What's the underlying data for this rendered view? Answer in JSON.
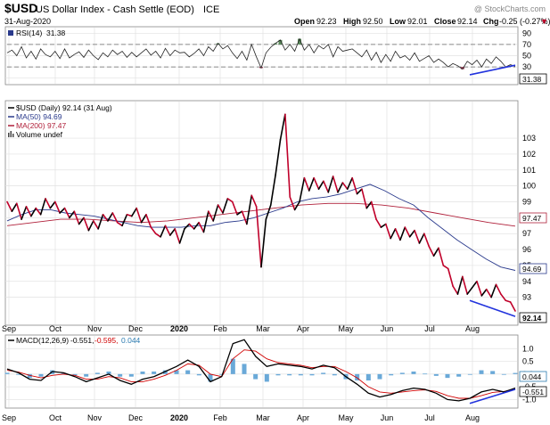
{
  "header": {
    "symbol": "$USD",
    "name": "US Dollar Index - Cash Settle (EOD)",
    "exchange": "ICE",
    "date": "31-Aug-2020",
    "credit": "@ StockCharts.com",
    "quote": {
      "open_label": "Open",
      "open": "92.23",
      "high_label": "High",
      "high": "92.50",
      "low_label": "Low",
      "low": "92.01",
      "close_label": "Close",
      "close": "92.14",
      "chg_label": "Chg",
      "chg": "-0.25 (-0.27%)",
      "chg_arrow": "▼"
    }
  },
  "x_labels": [
    "Sep",
    "Oct",
    "Nov",
    "Dec",
    "2020",
    "Feb",
    "Mar",
    "Apr",
    "May",
    "Jun",
    "Jul",
    "Aug"
  ],
  "colors": {
    "price": "#000000",
    "price_down": "#c0002a",
    "ma50": "#2a3a8c",
    "ma200": "#b0203a",
    "trend": "#2233dd",
    "macd": "#000000",
    "signal": "#d00000",
    "hist": "#6aa9d8"
  },
  "chart_data": [
    {
      "type": "line",
      "title": "RSI(14) 31.38",
      "label_prefix": "RSI(14)",
      "label_value": "31.38",
      "ylim": [
        0,
        100
      ],
      "yticks": [
        "90",
        "70",
        "50",
        "30",
        "10"
      ],
      "levels": [
        70,
        30
      ],
      "last_value_tag": "31.38",
      "series": [
        {
          "name": "RSI(14)",
          "values": [
            55,
            60,
            50,
            66,
            46,
            58,
            44,
            62,
            52,
            48,
            58,
            45,
            62,
            46,
            52,
            57,
            47,
            60,
            50,
            43,
            55,
            48,
            60,
            52,
            58,
            47,
            56,
            48,
            55,
            62,
            51,
            58,
            46,
            63,
            50,
            60,
            55,
            56,
            48,
            54,
            62,
            50,
            66,
            58,
            72,
            62,
            68,
            55,
            45,
            58,
            42,
            70,
            48,
            28,
            55,
            65,
            72,
            78,
            60,
            70,
            58,
            80,
            60,
            70,
            55,
            68,
            62,
            70,
            48,
            66,
            58,
            60,
            62,
            55,
            48,
            60,
            42,
            56,
            38,
            52,
            40,
            58,
            46,
            50,
            42,
            55,
            40,
            45,
            50,
            38,
            44,
            38,
            30,
            36,
            32,
            26,
            40,
            34,
            42,
            30,
            44,
            36,
            48,
            40,
            30,
            34,
            31
          ]
        }
      ],
      "trend_line": {
        "from_value": 16,
        "to_value": 33
      }
    },
    {
      "type": "line",
      "title": "$USD (Daily) 92.14 (31 Aug)",
      "ylim": [
        91.3,
        105.3
      ],
      "yticks": [
        "103",
        "102",
        "101",
        "100",
        "99",
        "98",
        "97",
        "96",
        "95",
        "94",
        "93"
      ],
      "legend": [
        "$USD (Daily) 92.14 (31 Aug)",
        "MA(50) 94.69",
        "MA(200) 97.47",
        "Volume undef"
      ],
      "last_value_tags": {
        "ma200": "97.47",
        "ma50": "94.69",
        "close": "92.14"
      },
      "series": [
        {
          "name": "$USD",
          "values": [
            99.0,
            98.4,
            98.9,
            97.9,
            98.7,
            98.1,
            98.6,
            98.2,
            99.2,
            98.6,
            99.0,
            98.3,
            98.6,
            98.0,
            98.4,
            97.6,
            98.0,
            97.2,
            97.8,
            97.3,
            98.2,
            97.8,
            98.3,
            97.7,
            97.5,
            98.2,
            98.1,
            98.6,
            97.7,
            98.2,
            97.4,
            97.0,
            96.8,
            97.5,
            96.9,
            97.3,
            96.4,
            97.3,
            97.6,
            97.3,
            97.7,
            97.1,
            98.4,
            97.8,
            98.8,
            98.3,
            99.2,
            99.0,
            98.2,
            98.4,
            97.6,
            99.4,
            98.7,
            94.9,
            97.9,
            98.8,
            100.7,
            102.9,
            104.5,
            99.3,
            98.5,
            99.0,
            100.5,
            99.7,
            100.5,
            99.8,
            100.3,
            99.6,
            100.6,
            99.6,
            100.2,
            99.8,
            100.5,
            99.5,
            99.8,
            98.6,
            99.0,
            97.9,
            97.4,
            97.6,
            96.7,
            97.3,
            96.6,
            97.4,
            96.8,
            97.2,
            96.4,
            97.0,
            96.2,
            95.6,
            96.1,
            95.0,
            94.8,
            93.7,
            93.2,
            94.3,
            93.2,
            93.6,
            94.0,
            93.1,
            93.5,
            93.0,
            93.8,
            93.2,
            92.8,
            92.7,
            92.14
          ]
        },
        {
          "name": "MA(50)",
          "values": [
            97.8,
            98.2,
            98.5,
            98.5,
            98.3,
            98.2,
            98.1,
            97.9,
            97.7,
            97.5,
            97.4,
            97.4,
            97.4,
            97.5,
            97.5,
            97.7,
            97.8,
            98.0,
            98.3,
            98.6,
            99.0,
            99.2,
            99.3,
            99.5,
            99.8,
            100.1,
            99.7,
            99.2,
            98.8,
            98.0,
            97.3,
            96.6,
            96.0,
            95.4,
            94.9,
            94.69
          ]
        },
        {
          "name": "MA(200)",
          "values": [
            97.5,
            97.7,
            97.9,
            97.9,
            97.8,
            97.7,
            97.8,
            98.0,
            98.2,
            98.4,
            98.6,
            98.8,
            98.9,
            98.9,
            98.8,
            98.6,
            98.3,
            98.0,
            97.7,
            97.47
          ]
        }
      ],
      "trend_line": {
        "from_value": 92.8,
        "to_value": 91.8
      }
    },
    {
      "type": "line",
      "title": "MACD(12,26,9) -0.551, -0.595, 0.044",
      "label_prefix": "MACD(12,26,9)",
      "label_macd": "-0.551,",
      "label_signal": "-0.595,",
      "label_hist": "0.044",
      "ylim": [
        -1.3,
        1.5
      ],
      "yticks": [
        "1.0",
        "0.5",
        "0.0",
        "-0.5",
        "-1.0"
      ],
      "last_value_tags": {
        "hist": "0.044",
        "macd": "-0.551"
      },
      "series": [
        {
          "name": "MACD",
          "values": [
            0.2,
            0.05,
            -0.2,
            -0.25,
            0.1,
            0.05,
            -0.1,
            -0.3,
            -0.15,
            0.0,
            -0.25,
            -0.4,
            -0.2,
            -0.1,
            0.1,
            0.3,
            0.55,
            0.3,
            -0.3,
            -0.1,
            1.2,
            1.35,
            0.7,
            0.3,
            0.4,
            0.35,
            0.3,
            0.2,
            0.35,
            0.25,
            -0.1,
            -0.4,
            -0.75,
            -0.9,
            -0.8,
            -0.65,
            -0.55,
            -0.6,
            -0.75,
            -1.0,
            -1.05,
            -0.95,
            -0.7,
            -0.6,
            -0.7,
            -0.551
          ]
        },
        {
          "name": "Signal",
          "values": [
            0.15,
            0.08,
            -0.05,
            -0.15,
            -0.05,
            0.0,
            -0.05,
            -0.2,
            -0.2,
            -0.1,
            -0.15,
            -0.3,
            -0.3,
            -0.2,
            -0.05,
            0.15,
            0.4,
            0.35,
            0.0,
            -0.1,
            0.6,
            0.95,
            0.9,
            0.6,
            0.45,
            0.4,
            0.35,
            0.25,
            0.3,
            0.3,
            0.1,
            -0.15,
            -0.5,
            -0.7,
            -0.75,
            -0.7,
            -0.65,
            -0.62,
            -0.68,
            -0.85,
            -0.95,
            -0.95,
            -0.85,
            -0.72,
            -0.68,
            -0.595
          ]
        },
        {
          "name": "Histogram",
          "values": [
            0.05,
            -0.03,
            -0.15,
            -0.1,
            0.15,
            0.05,
            -0.05,
            -0.1,
            0.05,
            0.1,
            -0.1,
            -0.1,
            0.1,
            0.1,
            0.15,
            0.15,
            0.15,
            -0.05,
            -0.3,
            0.0,
            0.6,
            0.4,
            -0.2,
            -0.3,
            -0.05,
            -0.05,
            -0.05,
            -0.05,
            0.05,
            -0.05,
            -0.2,
            -0.25,
            -0.25,
            -0.2,
            -0.05,
            0.05,
            0.1,
            0.02,
            -0.07,
            -0.15,
            -0.1,
            0.0,
            0.15,
            0.12,
            -0.02,
            0.044
          ]
        }
      ],
      "trend_line": {
        "from_value": -1.15,
        "to_value": -0.6
      }
    }
  ]
}
